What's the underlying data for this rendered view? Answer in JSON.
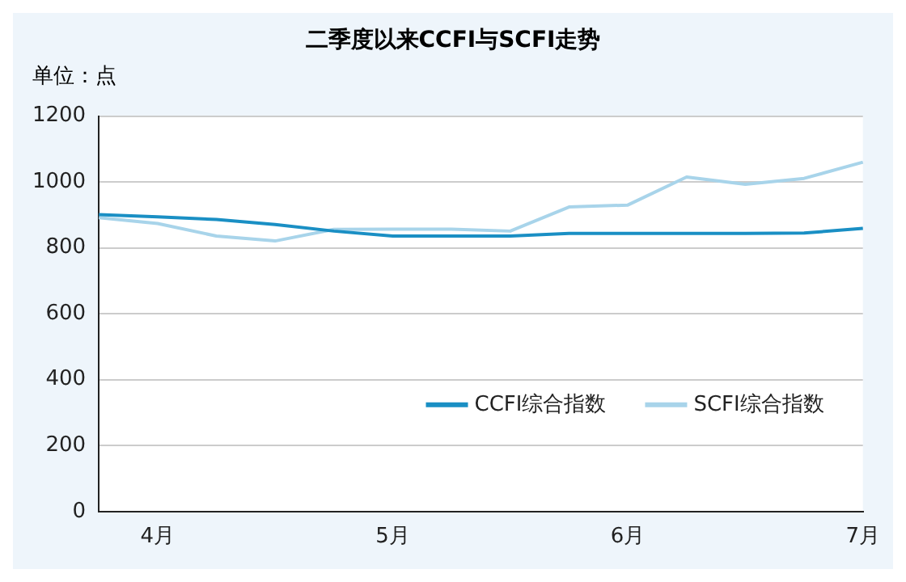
{
  "chart_data": {
    "type": "line",
    "title": "二季度以来CCFI与SCFI走势",
    "subtitle": "单位：点",
    "categories": [
      null,
      "4月",
      null,
      null,
      null,
      "5月",
      null,
      null,
      null,
      "6月",
      null,
      null,
      null,
      "7月"
    ],
    "series": [
      {
        "name": "CCFI综合指数",
        "color": "#1a8fc4",
        "values": [
          901,
          894,
          886,
          871,
          851,
          836,
          836,
          836,
          844,
          844,
          844,
          844,
          845,
          859
        ]
      },
      {
        "name": "SCFI综合指数",
        "color": "#a8d4ea",
        "values": [
          892,
          874,
          836,
          821,
          856,
          857,
          857,
          851,
          924,
          930,
          1015,
          993,
          1011,
          1060
        ]
      }
    ],
    "ylim": [
      0,
      1200
    ],
    "yticks": [
      0,
      200,
      400,
      600,
      800,
      1000,
      1200
    ],
    "grid": "y",
    "legend": "bottom right",
    "marker": "none",
    "line_style": "solid"
  }
}
